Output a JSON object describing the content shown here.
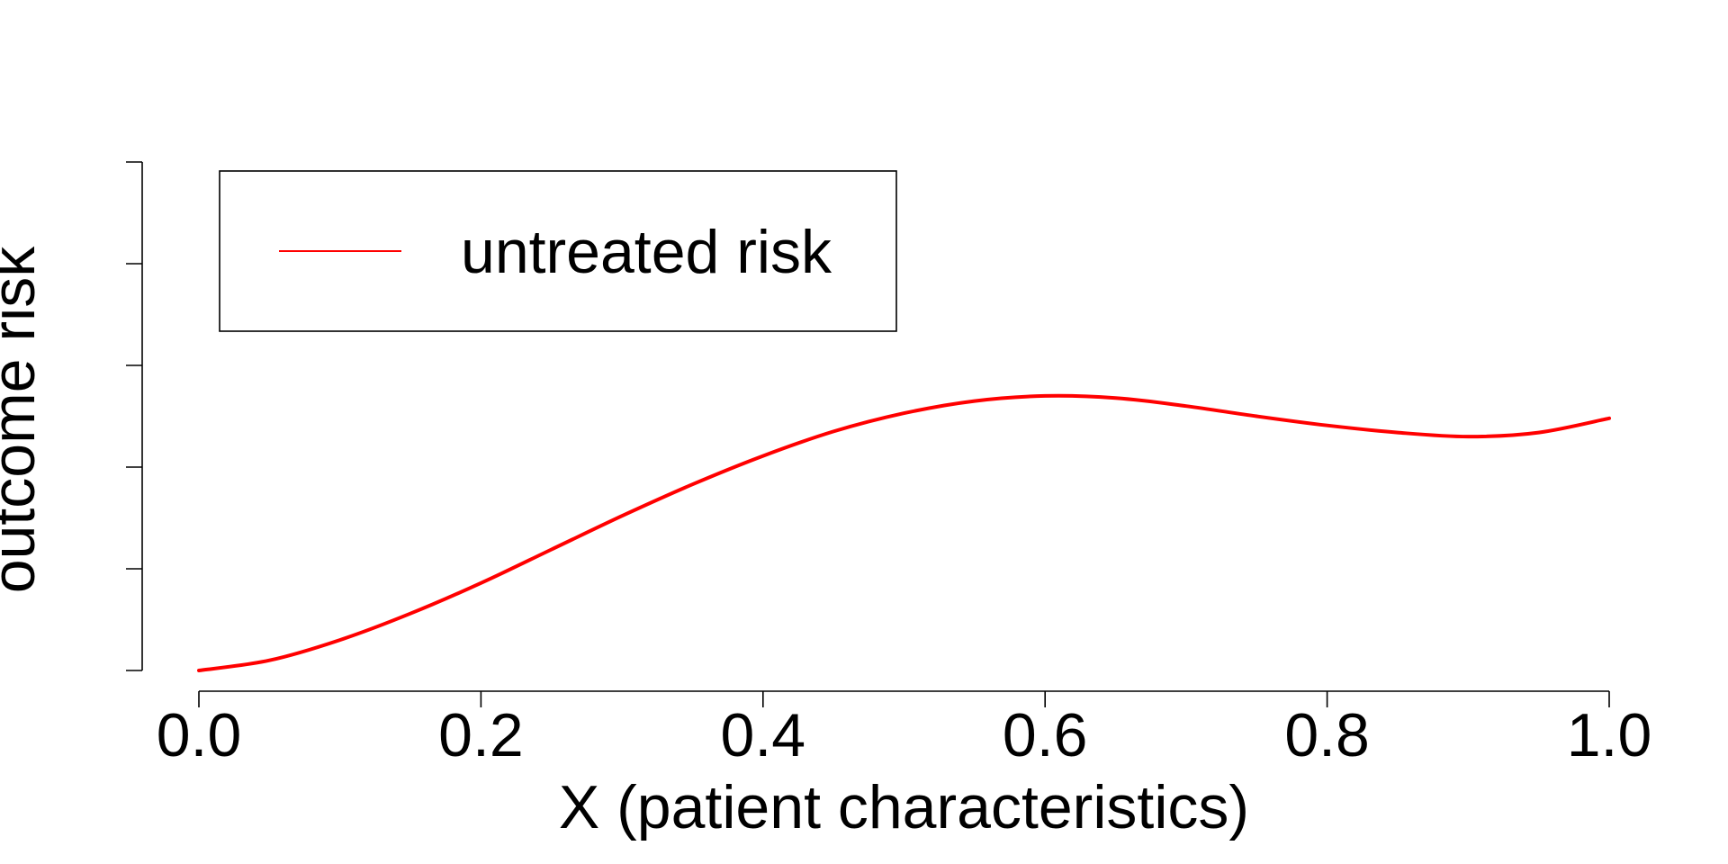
{
  "chart_data": {
    "type": "line",
    "xlabel": "X (patient characteristics)",
    "ylabel": "outcome risk",
    "xlim": [
      0.0,
      1.0
    ],
    "ylim": [
      0,
      5
    ],
    "x_ticks": [
      "0.0",
      "0.2",
      "0.4",
      "0.6",
      "0.8",
      "1.0"
    ],
    "y_ticks_count": 6,
    "y_tick_labels_visible": false,
    "grid": false,
    "legend": {
      "position": "top-left",
      "entries": [
        "untreated risk"
      ]
    },
    "series": [
      {
        "name": "untreated risk",
        "color": "#ff0000",
        "x": [
          0.0,
          0.05,
          0.1,
          0.15,
          0.2,
          0.25,
          0.3,
          0.35,
          0.4,
          0.45,
          0.5,
          0.55,
          0.6,
          0.65,
          0.7,
          0.75,
          0.8,
          0.85,
          0.9,
          0.95,
          1.0
        ],
        "y": [
          0.0,
          0.1,
          0.3,
          0.56,
          0.86,
          1.19,
          1.52,
          1.83,
          2.11,
          2.35,
          2.53,
          2.65,
          2.7,
          2.68,
          2.6,
          2.5,
          2.41,
          2.34,
          2.3,
          2.34,
          2.48
        ]
      }
    ]
  }
}
